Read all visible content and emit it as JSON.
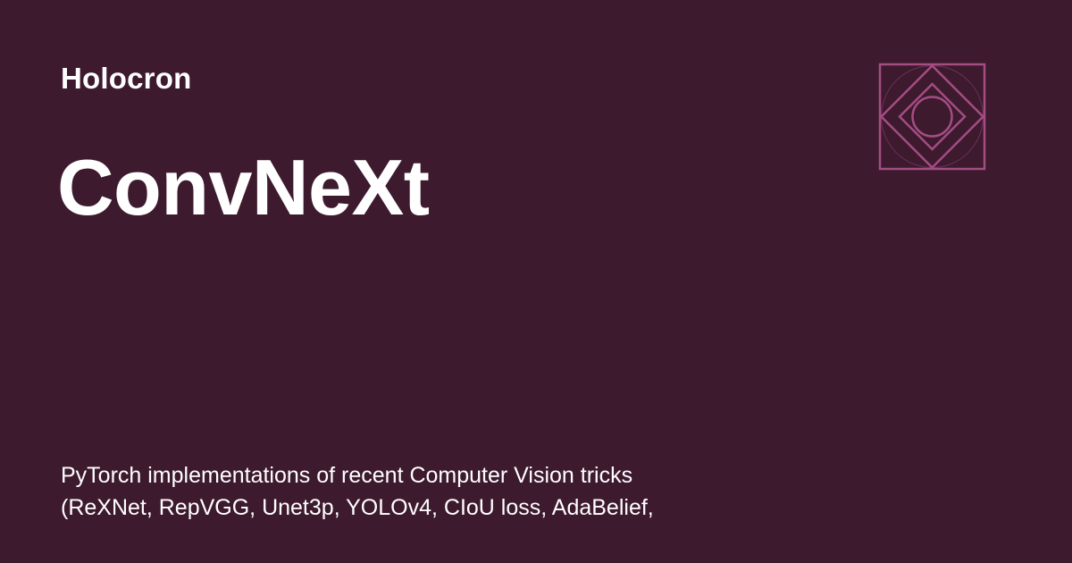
{
  "site": {
    "name": "Holocron"
  },
  "page": {
    "title": "ConvNeXt"
  },
  "description": {
    "line1": "PyTorch implementations of recent Computer Vision tricks",
    "line2": "(ReXNet, RepVGG, Unet3p, YOLOv4, CIoU loss, AdaBelief,"
  },
  "logo": {
    "icon": "holocron-logo-icon",
    "color": "#a34d82"
  },
  "colors": {
    "background": "#3d1a2e",
    "text": "#ffffff"
  }
}
